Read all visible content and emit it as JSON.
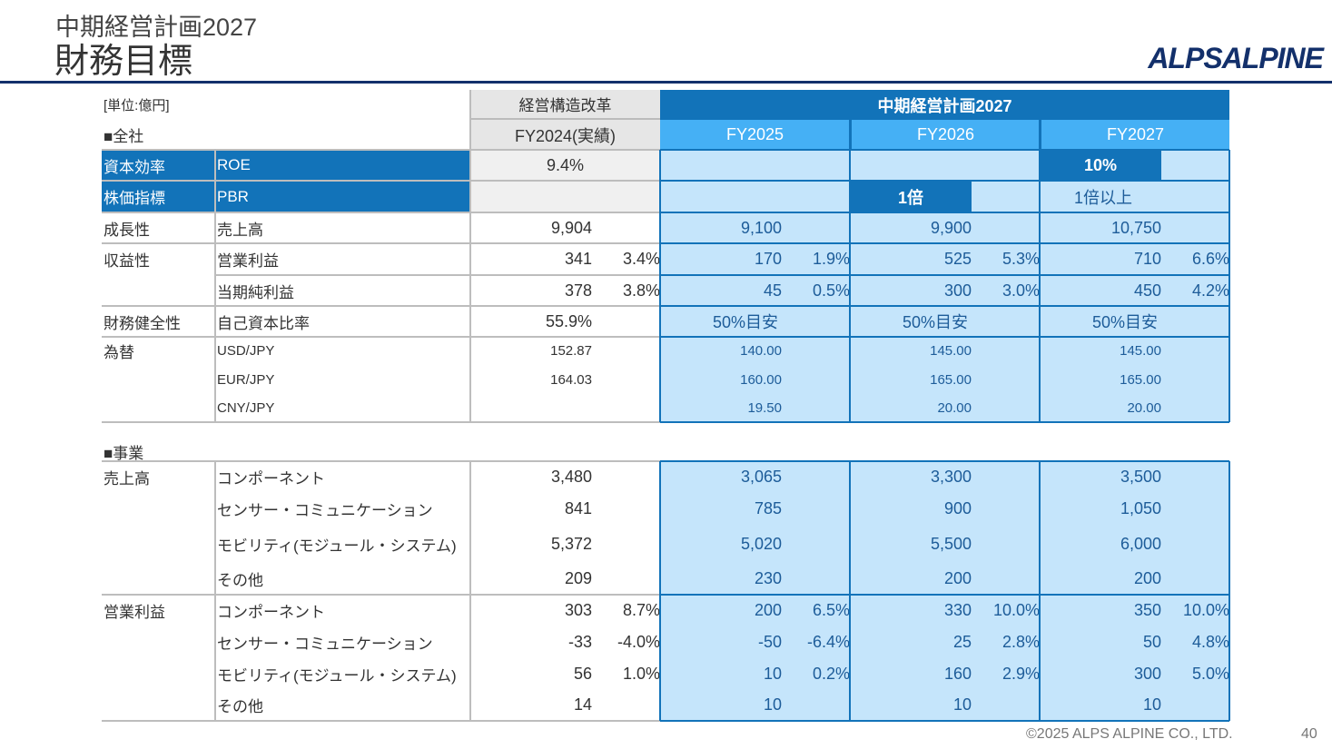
{
  "header": {
    "subtitle": "中期経営計画2027",
    "title": "財務目標",
    "logo": "ALPSALPINE"
  },
  "table": {
    "unit": "[単位:億円]",
    "group_restructure": "経営構造改革",
    "group_plan": "中期経営計画2027",
    "columns": [
      "FY2024(実績)",
      "FY2025",
      "FY2026",
      "FY2027"
    ],
    "section_overall": "■全社",
    "section_business": "■事業",
    "overall": [
      {
        "category": "資本効率",
        "item": "ROE",
        "cells": [
          {
            "text": "9.4%"
          },
          {},
          {},
          {
            "text": "10%",
            "highlight": true
          }
        ]
      },
      {
        "category": "株価指標",
        "item": "PBR",
        "cells": [
          {},
          {},
          {
            "text": "1倍",
            "highlight": true
          },
          {
            "text": "1倍以上"
          }
        ]
      },
      {
        "category": "成長性",
        "item": "売上高",
        "cells": [
          {
            "value": "9,904"
          },
          {
            "value": "9,100"
          },
          {
            "value": "9,900"
          },
          {
            "value": "10,750"
          }
        ]
      },
      {
        "category": "収益性",
        "item": "営業利益",
        "cells": [
          {
            "value": "341",
            "pct": "3.4%"
          },
          {
            "value": "170",
            "pct": "1.9%"
          },
          {
            "value": "525",
            "pct": "5.3%"
          },
          {
            "value": "710",
            "pct": "6.6%"
          }
        ]
      },
      {
        "category": "",
        "item": "当期純利益",
        "cells": [
          {
            "value": "378",
            "pct": "3.8%"
          },
          {
            "value": "45",
            "pct": "0.5%"
          },
          {
            "value": "300",
            "pct": "3.0%"
          },
          {
            "value": "450",
            "pct": "4.2%"
          }
        ]
      },
      {
        "category": "財務健全性",
        "item": "自己資本比率",
        "cells": [
          {
            "value": "55.9%"
          },
          {
            "text": "50%目安"
          },
          {
            "text": "50%目安"
          },
          {
            "text": "50%目安"
          }
        ]
      },
      {
        "category": "為替",
        "item": "USD/JPY",
        "cells": [
          {
            "value": "152.87"
          },
          {
            "value": "140.00"
          },
          {
            "value": "145.00"
          },
          {
            "value": "145.00"
          }
        ]
      },
      {
        "category": "",
        "item": "EUR/JPY",
        "cells": [
          {
            "value": "164.03"
          },
          {
            "value": "160.00"
          },
          {
            "value": "165.00"
          },
          {
            "value": "165.00"
          }
        ]
      },
      {
        "category": "",
        "item": "CNY/JPY",
        "cells": [
          {},
          {
            "value": "19.50"
          },
          {
            "value": "20.00"
          },
          {
            "value": "20.00"
          }
        ]
      }
    ],
    "business": [
      {
        "category": "売上高",
        "item": "コンポーネント",
        "cells": [
          {
            "value": "3,480"
          },
          {
            "value": "3,065"
          },
          {
            "value": "3,300"
          },
          {
            "value": "3,500"
          }
        ]
      },
      {
        "category": "",
        "item": "センサー・コミュニケーション",
        "cells": [
          {
            "value": "841"
          },
          {
            "value": "785"
          },
          {
            "value": "900"
          },
          {
            "value": "1,050"
          }
        ]
      },
      {
        "category": "",
        "item": "モビリティ(モジュール・システム)",
        "cells": [
          {
            "value": "5,372"
          },
          {
            "value": "5,020"
          },
          {
            "value": "5,500"
          },
          {
            "value": "6,000"
          }
        ]
      },
      {
        "category": "",
        "item": "その他",
        "cells": [
          {
            "value": "209"
          },
          {
            "value": "230"
          },
          {
            "value": "200"
          },
          {
            "value": "200"
          }
        ]
      },
      {
        "category": "営業利益",
        "item": "コンポーネント",
        "cells": [
          {
            "value": "303",
            "pct": "8.7%"
          },
          {
            "value": "200",
            "pct": "6.5%"
          },
          {
            "value": "330",
            "pct": "10.0%"
          },
          {
            "value": "350",
            "pct": "10.0%"
          }
        ]
      },
      {
        "category": "",
        "item": "センサー・コミュニケーション",
        "cells": [
          {
            "value": "-33",
            "pct": "-4.0%"
          },
          {
            "value": "-50",
            "pct": "-6.4%"
          },
          {
            "value": "25",
            "pct": "2.8%"
          },
          {
            "value": "50",
            "pct": "4.8%"
          }
        ]
      },
      {
        "category": "",
        "item": "モビリティ(モジュール・システム)",
        "cells": [
          {
            "value": "56",
            "pct": "1.0%"
          },
          {
            "value": "10",
            "pct": "0.2%"
          },
          {
            "value": "160",
            "pct": "2.9%"
          },
          {
            "value": "300",
            "pct": "5.0%"
          }
        ]
      },
      {
        "category": "",
        "item": "その他",
        "cells": [
          {
            "value": "14"
          },
          {
            "value": "10"
          },
          {
            "value": "10"
          },
          {
            "value": "10"
          }
        ]
      }
    ]
  },
  "footer": {
    "copyright": "©2025 ALPS ALPINE CO., LTD.",
    "page": "40"
  },
  "colors": {
    "dark_blue": "#1273b9",
    "mid_blue": "#45b0f5",
    "light_blue": "#c5e5fb",
    "navy": "#13306b"
  }
}
